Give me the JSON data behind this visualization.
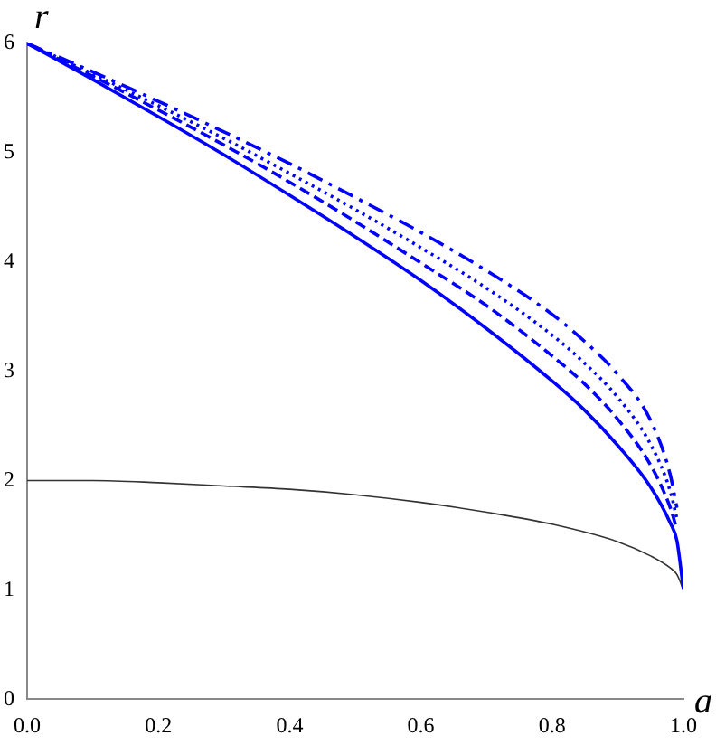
{
  "chart_data": {
    "type": "line",
    "xlabel": "a",
    "ylabel": "r",
    "xlim": [
      0,
      1
    ],
    "ylim": [
      0,
      6
    ],
    "xticks": [
      {
        "value": 0,
        "label": "0.0"
      },
      {
        "value": 0.2,
        "label": "0.2"
      },
      {
        "value": 0.4,
        "label": "0.4"
      },
      {
        "value": 0.6,
        "label": "0.6"
      },
      {
        "value": 0.8,
        "label": "0.8"
      },
      {
        "value": 1,
        "label": "1.0"
      }
    ],
    "yticks": [
      0,
      1,
      2,
      3,
      4,
      5,
      6
    ],
    "grid": false,
    "legend": false,
    "marker": "none",
    "series": [
      {
        "color": "#0000ff",
        "line_style": "solid",
        "x": [
          0,
          0.1,
          0.2,
          0.3,
          0.4,
          0.5,
          0.6,
          0.7,
          0.8,
          0.85,
          0.9,
          0.95,
          0.98,
          0.99,
          1
        ],
        "values": [
          6,
          5.67,
          5.33,
          4.98,
          4.61,
          4.23,
          3.83,
          3.39,
          2.91,
          2.64,
          2.32,
          1.94,
          1.61,
          1.45,
          1
        ]
      },
      {
        "color": "#0000ff",
        "line_style": "dashed",
        "x": [
          0,
          0.1,
          0.2,
          0.3,
          0.4,
          0.5,
          0.6,
          0.7,
          0.8,
          0.85,
          0.9,
          0.95,
          0.98,
          0.99
        ],
        "values": [
          6,
          5.7,
          5.39,
          5.07,
          4.73,
          4.37,
          3.99,
          3.6,
          3.14,
          2.88,
          2.56,
          2.14,
          1.75,
          1.55
        ]
      },
      {
        "color": "#0000ff",
        "line_style": "dotted",
        "x": [
          0,
          0.1,
          0.2,
          0.3,
          0.4,
          0.5,
          0.6,
          0.7,
          0.8,
          0.85,
          0.9,
          0.95,
          0.98,
          0.99
        ],
        "values": [
          6,
          5.72,
          5.43,
          5.13,
          4.81,
          4.48,
          4.13,
          3.76,
          3.33,
          3.07,
          2.76,
          2.33,
          1.9,
          1.65
        ]
      },
      {
        "color": "#0000ff",
        "line_style": "dashdot",
        "x": [
          0,
          0.1,
          0.2,
          0.3,
          0.4,
          0.5,
          0.6,
          0.7,
          0.8,
          0.85,
          0.9,
          0.95,
          0.98,
          0.99
        ],
        "values": [
          6,
          5.74,
          5.47,
          5.19,
          4.9,
          4.59,
          4.27,
          3.92,
          3.52,
          3.27,
          2.97,
          2.55,
          2.05,
          1.75
        ]
      },
      {
        "color": "#333333",
        "line_style": "solid",
        "x": [
          0,
          0.1,
          0.2,
          0.3,
          0.4,
          0.5,
          0.6,
          0.7,
          0.8,
          0.9,
          0.95,
          0.98,
          0.99,
          1
        ],
        "values": [
          2,
          2,
          1.98,
          1.95,
          1.92,
          1.87,
          1.8,
          1.71,
          1.6,
          1.44,
          1.31,
          1.2,
          1.14,
          1
        ]
      }
    ]
  }
}
